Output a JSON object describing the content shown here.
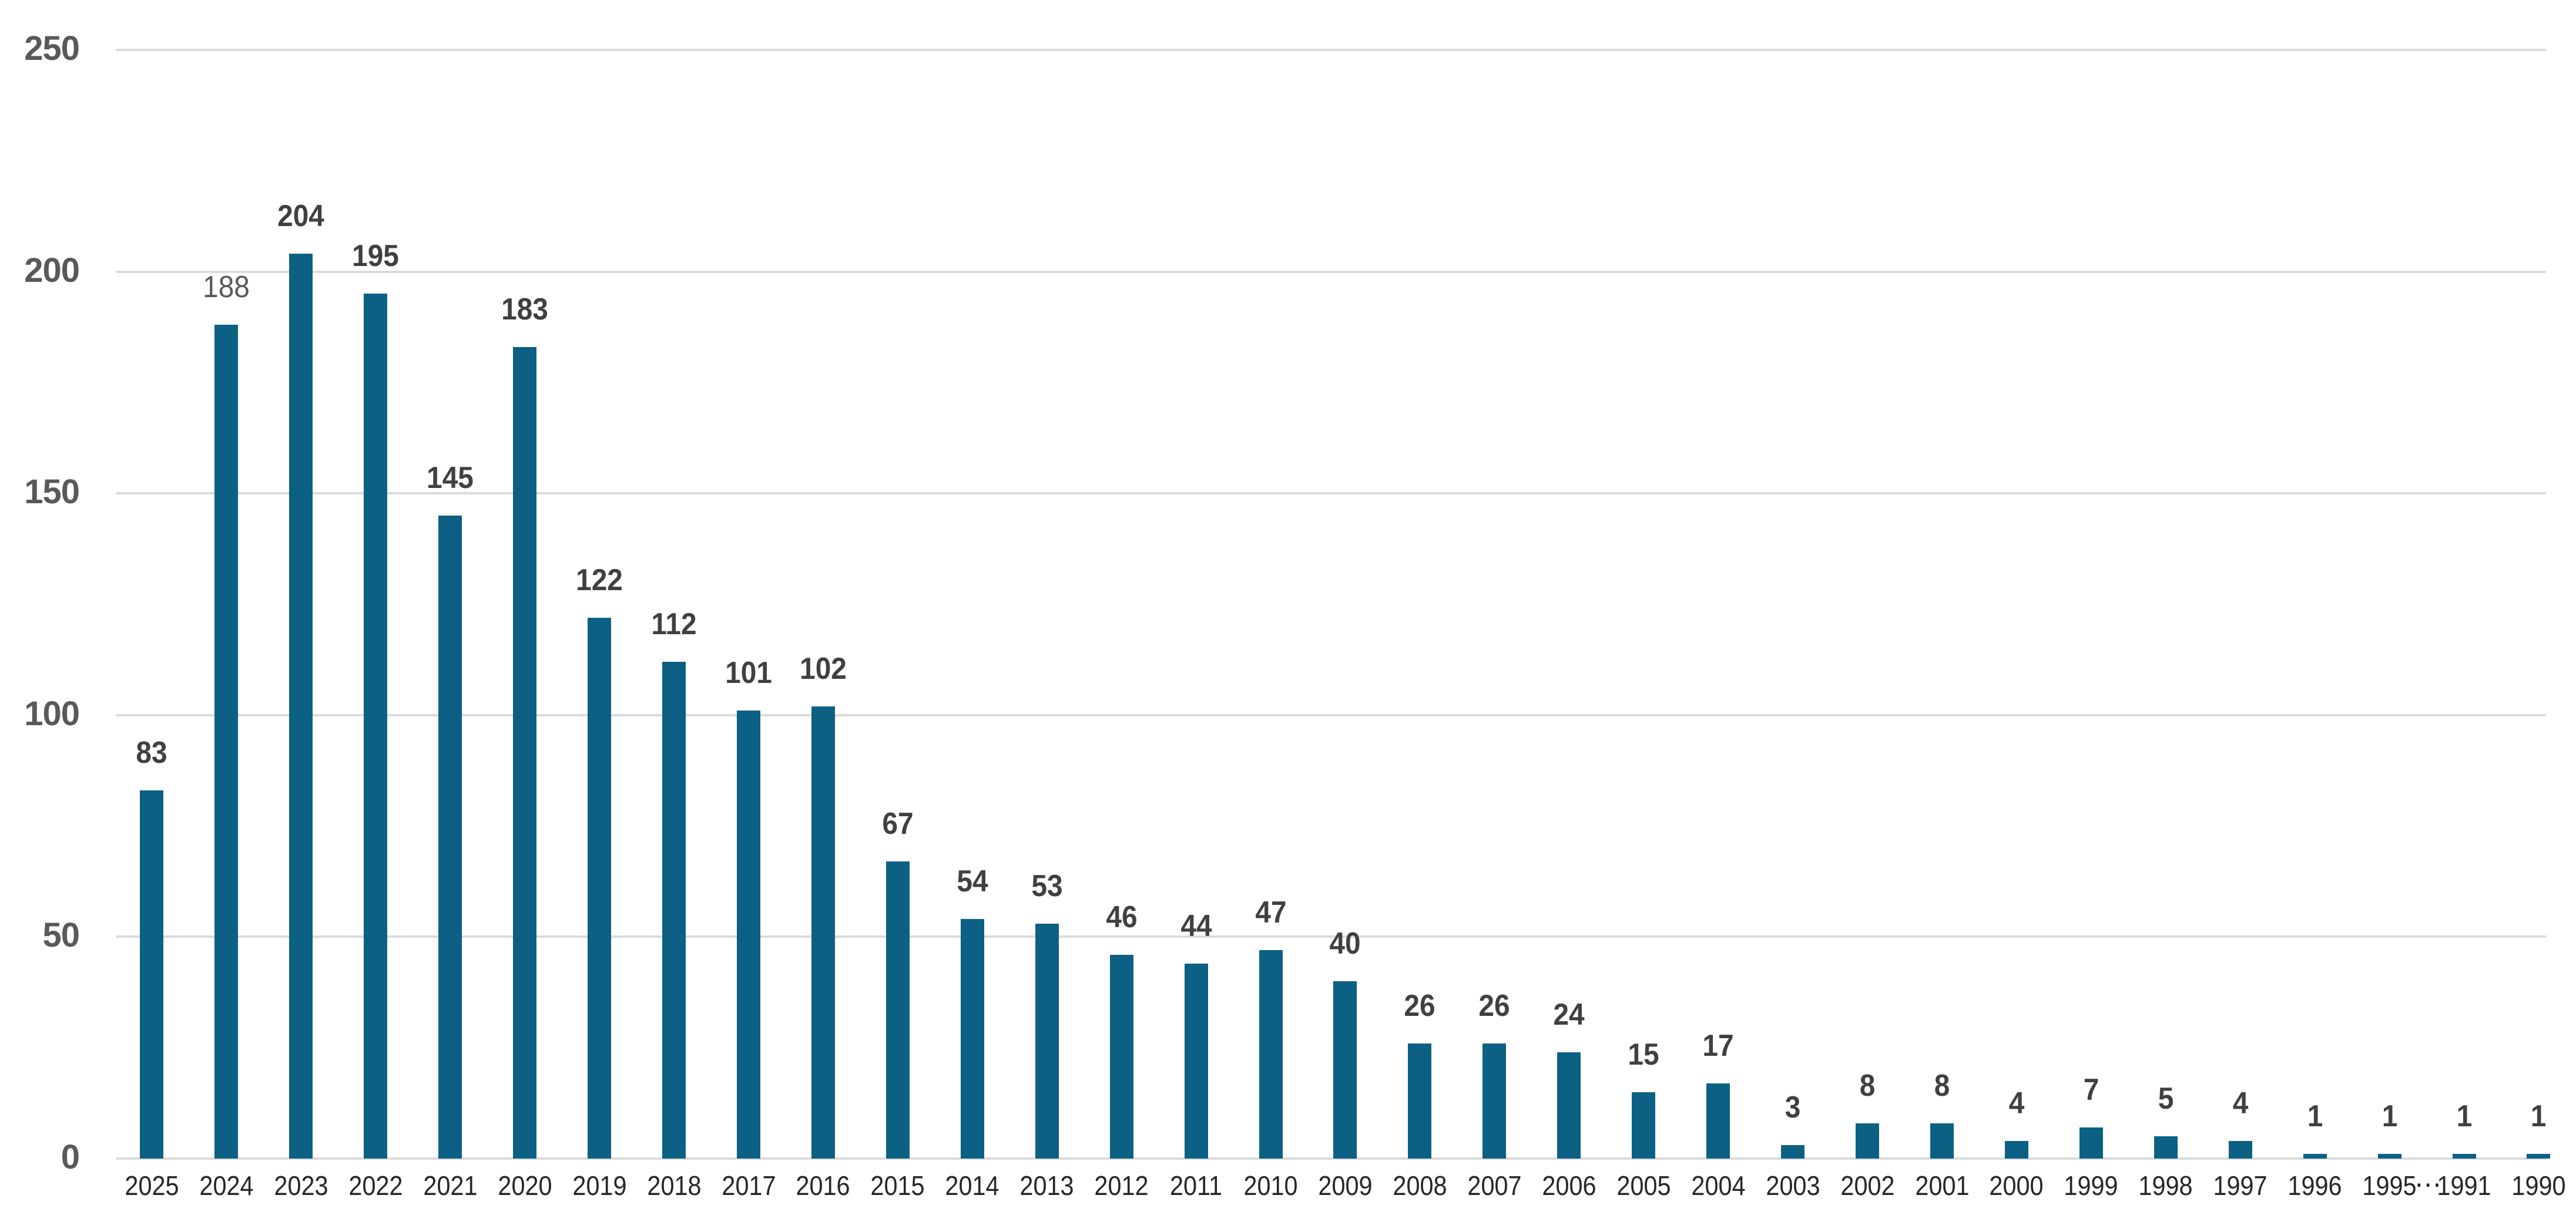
{
  "chart_data": {
    "type": "bar",
    "title": "",
    "xlabel": "",
    "ylabel": "",
    "categories": [
      "2025",
      "2024",
      "2023",
      "2022",
      "2021",
      "2020",
      "2019",
      "2018",
      "2017",
      "2016",
      "2015",
      "2014",
      "2013",
      "2012",
      "2011",
      "2010",
      "2009",
      "2008",
      "2007",
      "2006",
      "2005",
      "2004",
      "2003",
      "2002",
      "2001",
      "2000",
      "1999",
      "1998",
      "1997",
      "1996",
      "1995",
      "1991",
      "1990"
    ],
    "values": [
      83,
      188,
      204,
      195,
      145,
      183,
      122,
      112,
      101,
      102,
      67,
      54,
      53,
      46,
      44,
      47,
      40,
      26,
      26,
      24,
      15,
      17,
      3,
      8,
      8,
      4,
      7,
      5,
      4,
      1,
      1,
      1,
      1
    ],
    "data_labels_shown": true,
    "muted_label_category": "2024",
    "x_axis_gap": {
      "after_category": "1995",
      "before_category": "1991",
      "separator": "⋯"
    },
    "yticks": [
      0,
      50,
      100,
      150,
      200,
      250
    ],
    "ytick_labels": [
      "0",
      "50",
      "100",
      "150",
      "200",
      "250"
    ],
    "ylim": [
      0,
      250
    ],
    "grid": "horizontal",
    "legend": "none",
    "colors": {
      "bar": "#0c6083",
      "gridline": "#DBDBDB",
      "y_tick_label": "#595959",
      "x_tick_label": "#262626",
      "data_label": "#404040",
      "muted_data_label": "#595959",
      "background": "#ffffff"
    }
  }
}
